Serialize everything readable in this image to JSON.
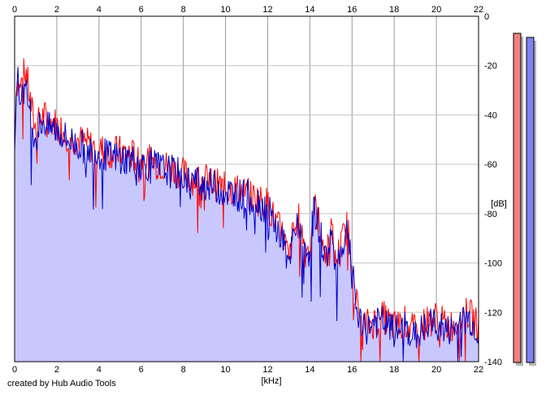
{
  "chart_data": {
    "type": "area",
    "xlabel": "[kHz]",
    "ylabel": "[dB]",
    "xlim": [
      0,
      22
    ],
    "ylim": [
      -140,
      0
    ],
    "x_ticks": [
      "0",
      "2",
      "4",
      "6",
      "8",
      "10",
      "12",
      "14",
      "16",
      "18",
      "20",
      "22"
    ],
    "y_ticks": [
      "0",
      "-20",
      "-40",
      "-60",
      "-80",
      "-100",
      "-120",
      "-140"
    ],
    "grid": true,
    "series": [
      {
        "color": "#ff0000",
        "x": [
          0,
          0.1,
          0.25,
          0.4,
          0.55,
          0.7,
          0.85,
          1,
          1.2,
          1.4,
          1.6,
          1.8,
          2,
          2.5,
          3,
          3.5,
          4,
          4.5,
          5,
          5.5,
          6,
          6.5,
          7,
          7.5,
          8,
          8.5,
          9,
          9.5,
          10,
          10.5,
          11,
          11.5,
          12,
          12.4,
          12.8,
          13,
          13.2,
          13.5,
          13.8,
          14,
          14.2,
          14.5,
          14.8,
          15,
          15.2,
          15.5,
          15.8,
          16,
          16.1,
          16.3,
          16.5,
          17,
          17.5,
          18,
          18.5,
          19,
          19.5,
          20,
          20.5,
          21,
          21.5,
          22
        ],
        "values": [
          -45,
          -26,
          -30,
          -24,
          -22,
          -32,
          -40,
          -46,
          -42,
          -40,
          -44,
          -42,
          -44,
          -48,
          -50,
          -52,
          -54,
          -55,
          -55,
          -56,
          -58,
          -59,
          -60,
          -62,
          -64,
          -66,
          -66,
          -68,
          -70,
          -70,
          -72,
          -74,
          -76,
          -84,
          -90,
          -100,
          -88,
          -82,
          -96,
          -92,
          -76,
          -86,
          -98,
          -84,
          -100,
          -92,
          -84,
          -98,
          -110,
          -120,
          -126,
          -124,
          -122,
          -126,
          -124,
          -128,
          -124,
          -122,
          -126,
          -124,
          -120,
          -126
        ]
      },
      {
        "color": "#0000cc",
        "x": [
          0,
          0.1,
          0.25,
          0.4,
          0.55,
          0.7,
          0.85,
          1,
          1.2,
          1.4,
          1.6,
          1.8,
          2,
          2.5,
          3,
          3.5,
          4,
          4.5,
          5,
          5.5,
          6,
          6.5,
          7,
          7.5,
          8,
          8.5,
          9,
          9.5,
          10,
          10.5,
          11,
          11.5,
          12,
          12.4,
          12.8,
          13,
          13.2,
          13.5,
          13.8,
          14,
          14.2,
          14.5,
          14.8,
          15,
          15.2,
          15.5,
          15.8,
          16,
          16.1,
          16.3,
          16.5,
          17,
          17.5,
          18,
          18.5,
          19,
          19.5,
          20,
          20.5,
          21,
          21.5,
          22
        ],
        "values": [
          -48,
          -22,
          -34,
          -28,
          -32,
          -36,
          -44,
          -50,
          -44,
          -42,
          -46,
          -45,
          -46,
          -50,
          -52,
          -54,
          -55,
          -57,
          -57,
          -58,
          -60,
          -60,
          -62,
          -63,
          -65,
          -67,
          -68,
          -69,
          -71,
          -72,
          -73,
          -75,
          -78,
          -86,
          -92,
          -104,
          -90,
          -84,
          -98,
          -94,
          -78,
          -88,
          -100,
          -86,
          -102,
          -94,
          -86,
          -100,
          -112,
          -122,
          -128,
          -124,
          -124,
          -128,
          -126,
          -130,
          -126,
          -124,
          -128,
          -126,
          -122,
          -128
        ]
      }
    ],
    "meters": [
      {
        "color": "#f08080",
        "value": -7
      },
      {
        "color": "#8080f0",
        "value": -9
      }
    ]
  },
  "credit": "created by Hub Audio Tools"
}
